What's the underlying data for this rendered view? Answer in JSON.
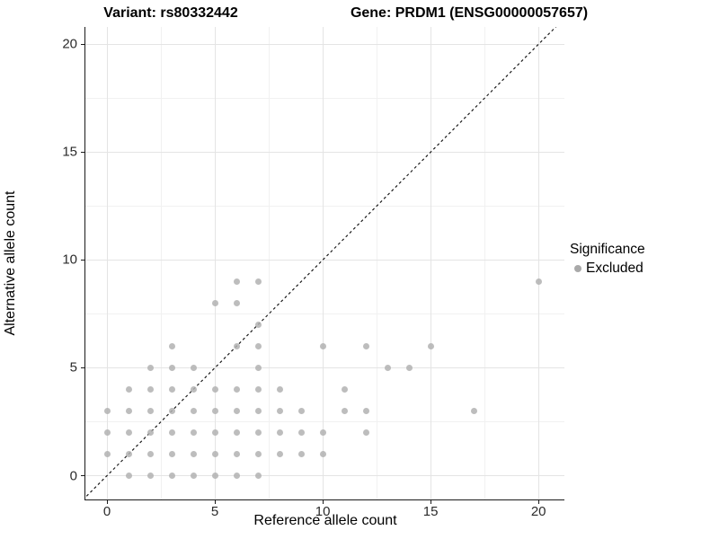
{
  "chart_data": {
    "type": "scatter",
    "titles": {
      "variant": "Variant: rs80332442",
      "gene": "Gene: PRDM1 (ENSG00000057657)"
    },
    "xlabel": "Reference allele count",
    "ylabel": "Alternative allele count",
    "xlim": [
      -1,
      21.2
    ],
    "ylim": [
      -1.1,
      20.8
    ],
    "x_ticks": [
      0,
      5,
      10,
      15,
      20
    ],
    "y_ticks": [
      0,
      5,
      10,
      15,
      20
    ],
    "x_minor_gridlines": [
      2.5,
      7.5,
      12.5,
      17.5
    ],
    "y_minor_gridlines": [
      2.5,
      7.5,
      12.5,
      17.5
    ],
    "grid": "on",
    "identity_line": {
      "equation": "y = x",
      "style": "dashed",
      "color": "#1a1a1a"
    },
    "legend": {
      "title": "Significance",
      "position": "right",
      "entries": [
        {
          "label": "Excluded",
          "marker": "circle",
          "color": "#a9a9a9"
        }
      ]
    },
    "series": [
      {
        "name": "Excluded",
        "marker": "circle",
        "color": "#b2b2b2",
        "points": [
          [
            1,
            0
          ],
          [
            2,
            0
          ],
          [
            3,
            0
          ],
          [
            4,
            0
          ],
          [
            5,
            0
          ],
          [
            6,
            0
          ],
          [
            7,
            0
          ],
          [
            0,
            1
          ],
          [
            1,
            1
          ],
          [
            2,
            1
          ],
          [
            3,
            1
          ],
          [
            4,
            1
          ],
          [
            5,
            1
          ],
          [
            6,
            1
          ],
          [
            7,
            1
          ],
          [
            8,
            1
          ],
          [
            9,
            1
          ],
          [
            10,
            1
          ],
          [
            0,
            2
          ],
          [
            1,
            2
          ],
          [
            2,
            2
          ],
          [
            3,
            2
          ],
          [
            4,
            2
          ],
          [
            5,
            2
          ],
          [
            6,
            2
          ],
          [
            7,
            2
          ],
          [
            8,
            2
          ],
          [
            9,
            2
          ],
          [
            10,
            2
          ],
          [
            12,
            2
          ],
          [
            0,
            3
          ],
          [
            1,
            3
          ],
          [
            2,
            3
          ],
          [
            3,
            3
          ],
          [
            4,
            3
          ],
          [
            5,
            3
          ],
          [
            6,
            3
          ],
          [
            7,
            3
          ],
          [
            8,
            3
          ],
          [
            9,
            3
          ],
          [
            11,
            3
          ],
          [
            12,
            3
          ],
          [
            17,
            3
          ],
          [
            1,
            4
          ],
          [
            2,
            4
          ],
          [
            3,
            4
          ],
          [
            4,
            4
          ],
          [
            5,
            4
          ],
          [
            6,
            4
          ],
          [
            7,
            4
          ],
          [
            8,
            4
          ],
          [
            11,
            4
          ],
          [
            2,
            5
          ],
          [
            3,
            5
          ],
          [
            4,
            5
          ],
          [
            7,
            5
          ],
          [
            13,
            5
          ],
          [
            14,
            5
          ],
          [
            3,
            6
          ],
          [
            6,
            6
          ],
          [
            7,
            6
          ],
          [
            10,
            6
          ],
          [
            12,
            6
          ],
          [
            15,
            6
          ],
          [
            7,
            7
          ],
          [
            5,
            8
          ],
          [
            6,
            8
          ],
          [
            6,
            9
          ],
          [
            7,
            9
          ],
          [
            20,
            9
          ]
        ]
      }
    ]
  },
  "colors": {
    "background": "#ffffff",
    "axis": "#1a1a1a",
    "grid_major": "#e4e4e4",
    "grid_minor": "#f1f1f1",
    "tick_text": "#2b2b2b",
    "point": "#b2b2b2"
  }
}
